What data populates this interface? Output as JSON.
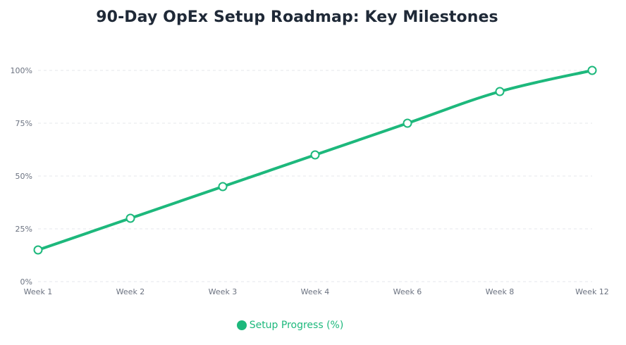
{
  "chart_data": {
    "type": "line",
    "title": "90-Day OpEx Setup Roadmap: Key Milestones",
    "categories": [
      "Week 1",
      "Week 2",
      "Week 3",
      "Week 4",
      "Week 6",
      "Week 8",
      "Week 12"
    ],
    "series": [
      {
        "name": "Setup Progress (%)",
        "values": [
          15,
          30,
          45,
          60,
          75,
          90,
          100
        ]
      }
    ],
    "y_ticks": [
      "0%",
      "25%",
      "50%",
      "75%",
      "100%"
    ],
    "ylim": [
      0,
      100
    ],
    "grid": true,
    "legend_position": "bottom",
    "colors": {
      "line": "#1db87c",
      "legend_text": "#1db87c",
      "grid": "#e5e7eb",
      "tick": "#6b7280",
      "title": "#1f2937",
      "point_fill": "#ffffff"
    }
  }
}
